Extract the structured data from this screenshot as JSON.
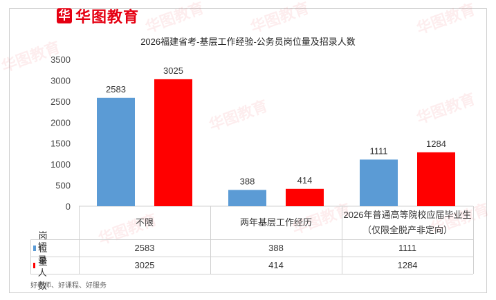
{
  "brand": {
    "icon_glyph": "华",
    "name": "华图教育",
    "color": "#e50012"
  },
  "chart_data": {
    "type": "bar",
    "title": "2026福建省考-基层工作经验-公务员岗位量及招录人数",
    "categories": [
      "不限",
      "两年基层工作经历",
      "2026年普通高等院校应届毕业生（仅限全脱产非定向）"
    ],
    "category_lines": [
      [
        "不限"
      ],
      [
        "两年基层工作经历"
      ],
      [
        "2026年普通高等院校应届毕业生",
        "（仅限全脱产非定向）"
      ]
    ],
    "series": [
      {
        "name": "岗位量",
        "color": "#5b9bd5",
        "values": [
          2583,
          388,
          1111
        ]
      },
      {
        "name": "招录人数",
        "color": "#ff0000",
        "values": [
          3025,
          414,
          1284
        ]
      }
    ],
    "ylim": [
      0,
      3500
    ],
    "yticks": [
      0,
      500,
      1000,
      1500,
      2000,
      2500,
      3000,
      3500
    ],
    "legend": "table-below",
    "grid": false
  },
  "footer": "好老师、好课程、好服务"
}
